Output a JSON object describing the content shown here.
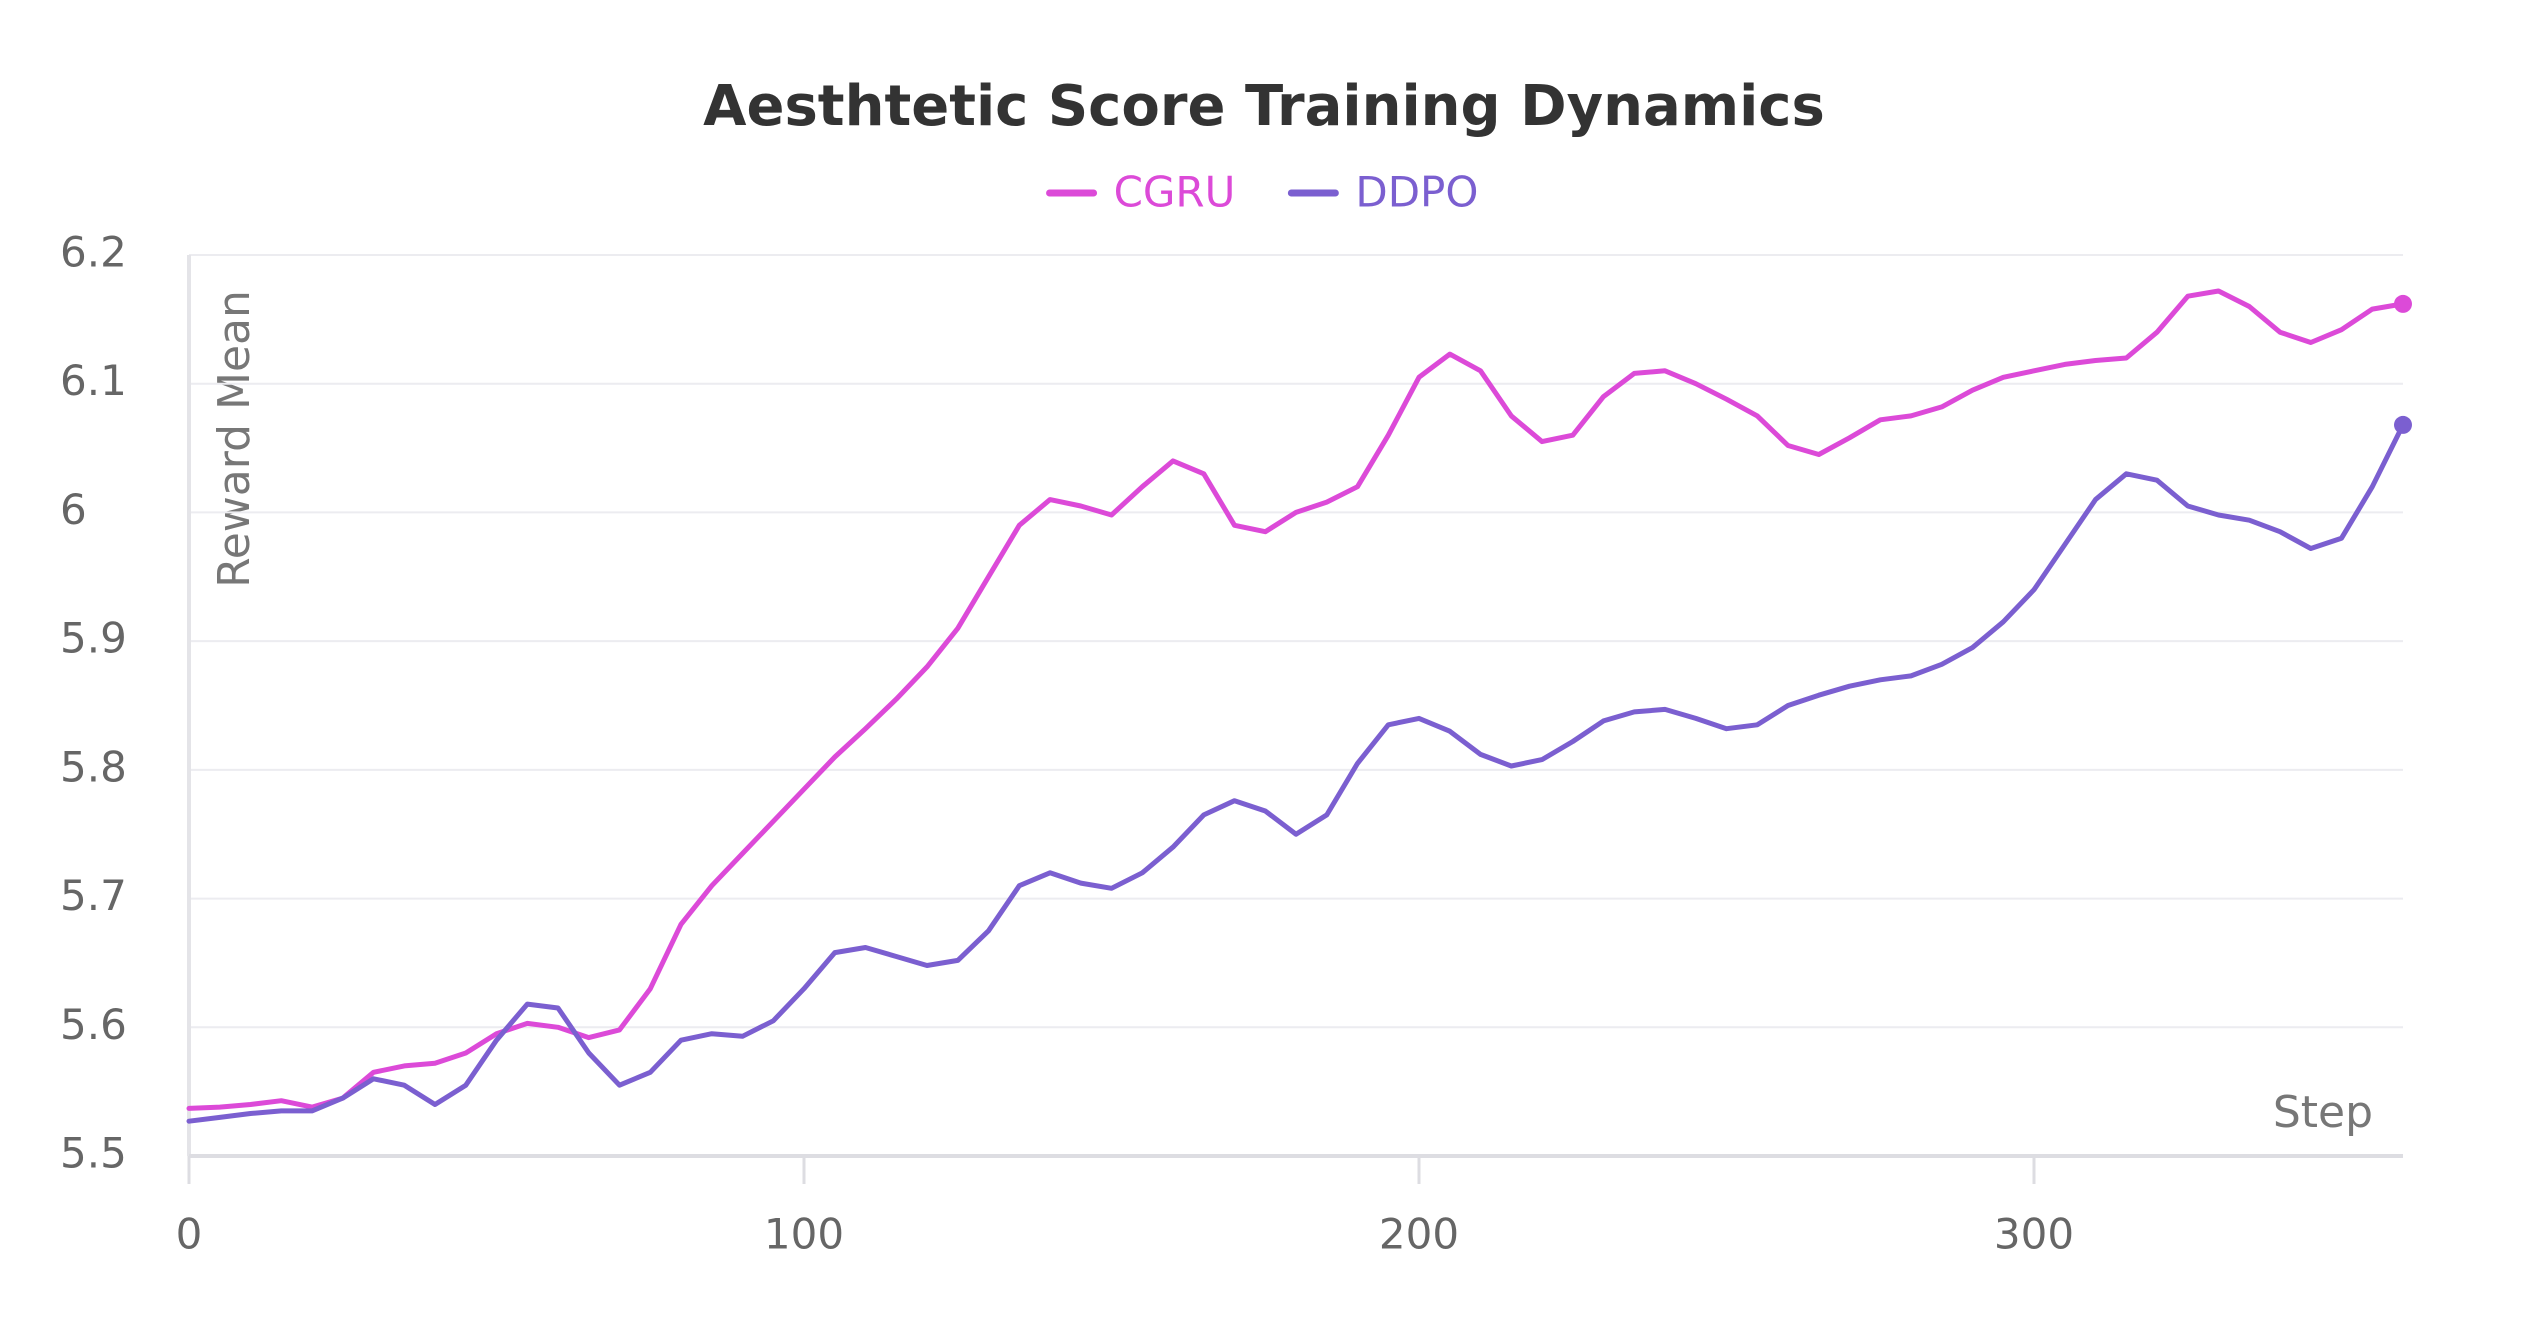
{
  "chart_data": {
    "type": "line",
    "title": "Aesthtetic Score Training Dynamics",
    "x_label": "Step",
    "y_label": "Reward Mean",
    "x": [
      0,
      5,
      10,
      15,
      20,
      25,
      30,
      35,
      40,
      45,
      50,
      55,
      60,
      65,
      70,
      75,
      80,
      85,
      90,
      95,
      100,
      105,
      110,
      115,
      120,
      125,
      130,
      135,
      140,
      145,
      150,
      155,
      160,
      165,
      170,
      175,
      180,
      185,
      190,
      195,
      200,
      205,
      210,
      215,
      220,
      225,
      230,
      235,
      240,
      245,
      250,
      255,
      260,
      265,
      270,
      275,
      280,
      285,
      290,
      295,
      300,
      305,
      310,
      315,
      320,
      325,
      330,
      335,
      340,
      345,
      350,
      355,
      360
    ],
    "series": [
      {
        "name": "CGRU",
        "color": "#dc4ad8",
        "values": [
          5.537,
          5.538,
          5.54,
          5.543,
          5.538,
          5.545,
          5.565,
          5.57,
          5.572,
          5.58,
          5.595,
          5.603,
          5.6,
          5.592,
          5.598,
          5.63,
          5.68,
          5.71,
          5.735,
          5.76,
          5.785,
          5.81,
          5.832,
          5.855,
          5.88,
          5.91,
          5.95,
          5.99,
          6.01,
          6.005,
          5.998,
          6.02,
          6.04,
          6.03,
          5.99,
          5.985,
          6.0,
          6.008,
          6.02,
          6.06,
          6.105,
          6.123,
          6.11,
          6.075,
          6.055,
          6.06,
          6.09,
          6.108,
          6.11,
          6.1,
          6.088,
          6.075,
          6.052,
          6.045,
          6.058,
          6.072,
          6.075,
          6.082,
          6.095,
          6.105,
          6.11,
          6.115,
          6.118,
          6.12,
          6.14,
          6.168,
          6.172,
          6.16,
          6.14,
          6.132,
          6.142,
          6.158,
          6.162
        ]
      },
      {
        "name": "DDPO",
        "color": "#7b5fd0",
        "values": [
          5.527,
          5.53,
          5.533,
          5.535,
          5.535,
          5.545,
          5.56,
          5.555,
          5.54,
          5.555,
          5.59,
          5.618,
          5.615,
          5.58,
          5.555,
          5.565,
          5.59,
          5.595,
          5.593,
          5.605,
          5.63,
          5.658,
          5.662,
          5.655,
          5.648,
          5.652,
          5.675,
          5.71,
          5.72,
          5.712,
          5.708,
          5.72,
          5.74,
          5.765,
          5.776,
          5.768,
          5.75,
          5.765,
          5.805,
          5.835,
          5.84,
          5.83,
          5.812,
          5.803,
          5.808,
          5.822,
          5.838,
          5.845,
          5.847,
          5.84,
          5.832,
          5.835,
          5.85,
          5.858,
          5.865,
          5.87,
          5.873,
          5.882,
          5.895,
          5.915,
          5.94,
          5.975,
          6.01,
          6.03,
          6.025,
          6.005,
          5.998,
          5.994,
          5.985,
          5.972,
          5.98,
          6.02,
          6.068
        ]
      }
    ],
    "xlim": [
      0,
      360
    ],
    "ylim": [
      5.5,
      6.2
    ],
    "xticks": [
      0,
      100,
      200,
      300
    ],
    "yticks": [
      5.5,
      5.6,
      5.7,
      5.8,
      5.9,
      6,
      6.1,
      6.2
    ],
    "grid": true,
    "legend": "top"
  }
}
